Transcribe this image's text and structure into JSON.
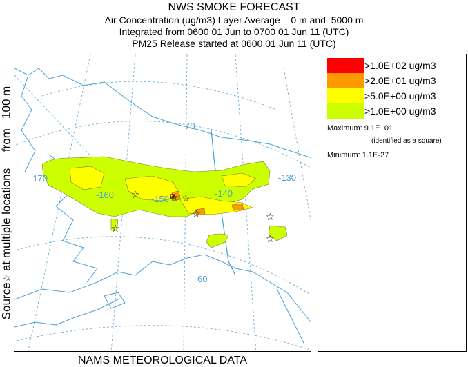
{
  "header": {
    "title": "NWS SMOKE FORECAST",
    "line1": "Air Concentration (ug/m3) Layer Average    0 m and  5000 m",
    "line2": "Integrated from 0600 01 Jun to 0700 01 Jun 11 (UTC)",
    "line3": "PM25 Release started at 0600 01 Jun 11 (UTC)"
  },
  "side_label": {
    "text_a": "Source",
    "star": "☆",
    "text_b": " at multiple locations     from   100 m"
  },
  "map": {
    "lat_labels": [
      "70",
      "60"
    ],
    "lon_labels": [
      "-170",
      "-160",
      "-150",
      "-140",
      "-130"
    ],
    "colors": {
      "level1": "#ccff00",
      "level2": "#ffff00",
      "level3": "#ff9900",
      "level4": "#ff0000",
      "graticule": "#6aaed8",
      "coast": "#4a9fd8"
    }
  },
  "legend": {
    "items": [
      {
        "label": ">1.0E+02 ug/m3",
        "color": "#ff0000"
      },
      {
        "label": ">2.0E+01 ug/m3",
        "color": "#ff9900"
      },
      {
        "label": ">5.0E+00 ug/m3",
        "color": "#ffff00"
      },
      {
        "label": ">1.0E+00 ug/m3",
        "color": "#ccff00"
      }
    ],
    "maximum": "Maximum: 9.1E+01",
    "maximum_note": "(identified as a square)",
    "minimum": "Minimum: 1.1E-27"
  },
  "footer": "NAMS METEOROLOGICAL DATA"
}
